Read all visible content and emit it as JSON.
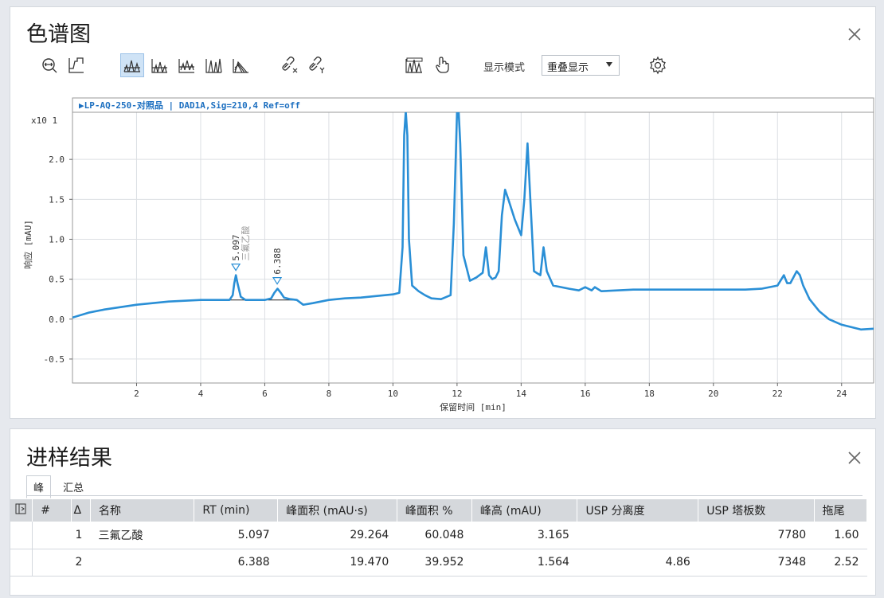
{
  "chromatogram_panel": {
    "title": "色谱图",
    "display_mode_label": "显示模式",
    "display_mode_value": "重叠显示",
    "toolbar_icons": [
      "zoom-fit-icon",
      "baseline-icon",
      "overlay-peaks-icon",
      "stack-peaks-icon",
      "offset-peaks-icon",
      "separate-peaks-icon",
      "skew-peaks-icon",
      "link-x-icon",
      "link-y-icon",
      "peak-select-icon",
      "pan-hand-icon",
      "settings-gear-icon"
    ],
    "trace_label": "▶LP-AQ-250-对照品 | DAD1A,Sig=210,4 Ref=off"
  },
  "chart_data": {
    "type": "line",
    "xlabel": "保留时间 [min]",
    "ylabel": "响应 [mAU]",
    "y_exponent_label": "x10 1",
    "xlim": [
      0,
      25
    ],
    "ylim": [
      -0.8,
      2.55
    ],
    "x_ticks": [
      2,
      4,
      6,
      8,
      10,
      12,
      14,
      16,
      18,
      20,
      22,
      24
    ],
    "y_ticks": [
      -0.5,
      0.0,
      0.5,
      1.0,
      1.5,
      2.0
    ],
    "y_tick_labels": [
      "-0.5",
      "0.0",
      "0.5",
      "1.0",
      "1.5",
      "2.0"
    ],
    "grid": true,
    "line_color": "#2a8fd6",
    "series": [
      {
        "x": [
          0.0,
          0.5,
          1.0,
          1.5,
          2.0,
          2.5,
          3.0,
          3.5,
          4.0,
          4.5,
          4.9,
          5.0,
          5.05,
          5.1,
          5.15,
          5.25,
          5.4,
          5.7,
          6.0,
          6.2,
          6.3,
          6.4,
          6.5,
          6.6,
          6.8,
          7.0,
          7.2,
          7.5,
          8.0,
          8.5,
          9.0,
          9.5,
          10.0,
          10.2,
          10.3,
          10.35,
          10.4,
          10.45,
          10.5,
          10.6,
          10.8,
          11.0,
          11.2,
          11.5,
          11.8,
          11.9,
          12.0,
          12.05,
          12.1,
          12.2,
          12.4,
          12.6,
          12.8,
          12.9,
          13.0,
          13.1,
          13.2,
          13.3,
          13.4,
          13.5,
          13.6,
          13.8,
          14.0,
          14.1,
          14.2,
          14.3,
          14.4,
          14.6,
          14.7,
          14.8,
          15.0,
          15.5,
          15.8,
          16.0,
          16.2,
          16.3,
          16.5,
          17.0,
          17.5,
          18.0,
          18.5,
          19.0,
          19.5,
          20.0,
          20.5,
          21.0,
          21.5,
          22.0,
          22.2,
          22.3,
          22.4,
          22.6,
          22.7,
          22.8,
          23.0,
          23.3,
          23.6,
          24.0,
          24.3,
          24.6,
          25.0
        ],
        "y": [
          0.02,
          0.08,
          0.12,
          0.15,
          0.18,
          0.2,
          0.22,
          0.23,
          0.24,
          0.24,
          0.24,
          0.3,
          0.45,
          0.55,
          0.45,
          0.28,
          0.24,
          0.24,
          0.24,
          0.26,
          0.33,
          0.38,
          0.33,
          0.27,
          0.25,
          0.24,
          0.18,
          0.2,
          0.24,
          0.26,
          0.27,
          0.29,
          0.31,
          0.33,
          0.9,
          2.3,
          2.6,
          2.3,
          1.0,
          0.42,
          0.35,
          0.3,
          0.26,
          0.25,
          0.3,
          1.2,
          2.6,
          2.6,
          2.2,
          0.8,
          0.48,
          0.52,
          0.58,
          0.9,
          0.55,
          0.5,
          0.52,
          0.6,
          1.3,
          1.62,
          1.5,
          1.25,
          1.05,
          1.5,
          2.2,
          1.4,
          0.6,
          0.55,
          0.9,
          0.6,
          0.42,
          0.38,
          0.36,
          0.4,
          0.36,
          0.4,
          0.35,
          0.36,
          0.37,
          0.37,
          0.37,
          0.37,
          0.37,
          0.37,
          0.37,
          0.37,
          0.38,
          0.42,
          0.55,
          0.45,
          0.45,
          0.6,
          0.55,
          0.42,
          0.25,
          0.1,
          0.0,
          -0.07,
          -0.1,
          -0.13,
          -0.12
        ]
      }
    ],
    "annotations": [
      {
        "x": 5.097,
        "y": 0.55,
        "rt": "5.097",
        "name": "三氟乙酸"
      },
      {
        "x": 6.388,
        "y": 0.38,
        "rt": "6.388",
        "name": ""
      }
    ],
    "baselines": [
      {
        "x1": 4.9,
        "y1": 0.24,
        "x2": 5.55,
        "y2": 0.24
      },
      {
        "x1": 6.1,
        "y1": 0.24,
        "x2": 7.0,
        "y2": 0.24
      }
    ]
  },
  "results_panel": {
    "title": "进样结果",
    "tabs": [
      "峰",
      "汇总"
    ],
    "columns": [
      "#",
      "Δ",
      "名称",
      "RT (min)",
      "峰面积 (mAU·s)",
      "峰面积 %",
      "峰高 (mAU)",
      "USP 分离度",
      "USP 塔板数",
      "拖尾"
    ],
    "rows": [
      {
        "num": "1",
        "name": "三氟乙酸",
        "rt": "5.097",
        "area": "29.264",
        "area_pct": "60.048",
        "height": "3.165",
        "usp_res": "",
        "usp_plates": "7780",
        "tailing": "1.60"
      },
      {
        "num": "2",
        "name": "",
        "rt": "6.388",
        "area": "19.470",
        "area_pct": "39.952",
        "height": "1.564",
        "usp_res": "4.86",
        "usp_plates": "7348",
        "tailing": "2.52"
      }
    ]
  }
}
